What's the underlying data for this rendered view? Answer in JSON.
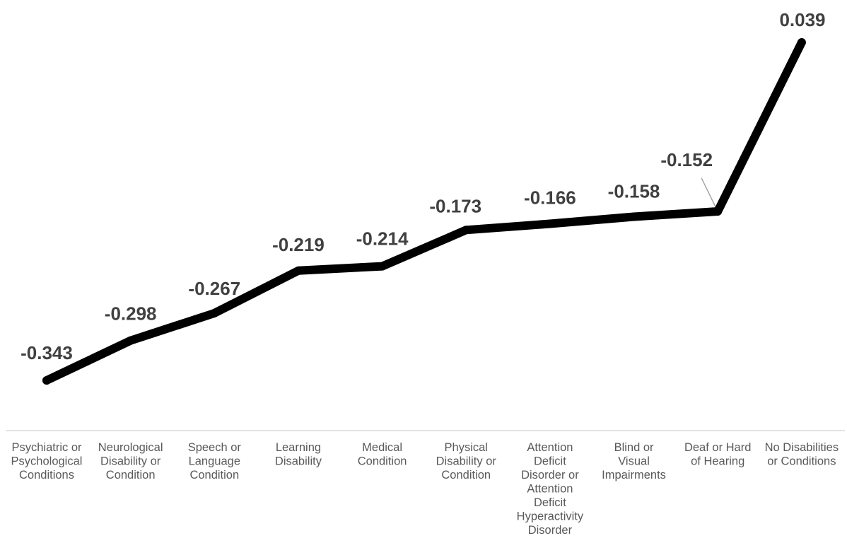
{
  "chart_data": {
    "type": "line",
    "categories": [
      [
        "Psychiatric or",
        "Psychological",
        "Conditions"
      ],
      [
        "Neurological",
        "Disability or",
        "Condition"
      ],
      [
        "Speech or",
        "Language",
        "Condition"
      ],
      [
        "Learning",
        "Disability"
      ],
      [
        "Medical",
        "Condition"
      ],
      [
        "Physical",
        "Disability or",
        "Condition"
      ],
      [
        "Attention",
        "Deficit",
        "Disorder or",
        "Attention",
        "Deficit",
        "Hyperactivity",
        "Disorder"
      ],
      [
        "Blind or",
        "Visual",
        "Impairments"
      ],
      [
        "Deaf or Hard",
        "of Hearing"
      ],
      [
        "No Disabilities",
        "or Conditions"
      ]
    ],
    "values": [
      -0.343,
      -0.298,
      -0.267,
      -0.219,
      -0.214,
      -0.173,
      -0.166,
      -0.158,
      -0.152,
      0.039
    ],
    "data_labels": [
      "-0.343",
      "-0.298",
      "-0.267",
      "-0.219",
      "-0.214",
      "-0.173",
      "-0.166",
      "-0.158",
      "-0.152",
      "0.039"
    ],
    "title": "",
    "xlabel": "",
    "ylabel": "",
    "grid": false,
    "legend": "none",
    "line_color": "#000000",
    "label_color": "#404040",
    "axis_color": "#d9d9d9"
  }
}
